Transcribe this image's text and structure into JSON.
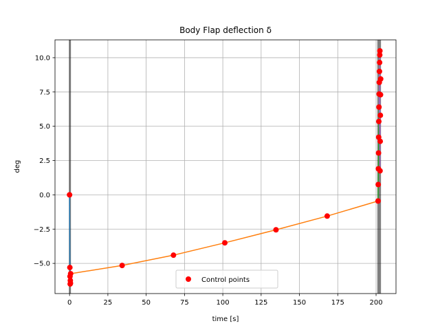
{
  "chart_data": {
    "type": "scatter",
    "title": "Body Flap deflection δ",
    "xlabel": "time [s]",
    "ylabel": "deg",
    "xlim": [
      -9.5,
      213
    ],
    "ylim": [
      -7.2,
      11.3
    ],
    "xticks": [
      0,
      25,
      50,
      75,
      100,
      125,
      150,
      175,
      200
    ],
    "yticks": [
      -5.0,
      -2.5,
      0.0,
      2.5,
      5.0,
      7.5,
      10.0
    ],
    "xtick_labels": [
      "0",
      "25",
      "50",
      "75",
      "100",
      "125",
      "150",
      "175",
      "200"
    ],
    "ytick_labels": [
      "−5.0",
      "−2.5",
      "0.0",
      "2.5",
      "5.0",
      "7.5",
      "10.0"
    ],
    "grid": true,
    "legend": {
      "location": "lower center",
      "entries": [
        "Control points"
      ]
    },
    "phase_bands": [
      {
        "x0": -0.4,
        "x1": 0.9
      },
      {
        "x0": 200.8,
        "x1": 202.0
      },
      {
        "x0": 202.0,
        "x1": 203.2
      }
    ],
    "series": [
      {
        "color": "#1f77b4",
        "mode": "line",
        "x": [
          0.0,
          0.2,
          0.4,
          0.6
        ],
        "y": [
          0.0,
          -5.3,
          -6.0,
          -6.4
        ]
      },
      {
        "color": "#ff7f0e",
        "mode": "line",
        "x": [
          0.7,
          34.3,
          67.8,
          101.3,
          134.7,
          168.1,
          201.3
        ],
        "y": [
          -5.75,
          -5.15,
          -4.4,
          -3.5,
          -2.55,
          -1.55,
          -0.45
        ]
      },
      {
        "color": "#2ca02c",
        "mode": "line",
        "x": [
          201.3,
          201.4,
          201.5,
          201.6,
          201.7,
          201.8,
          201.9
        ],
        "y": [
          -0.45,
          0.75,
          1.9,
          3.05,
          4.2,
          5.35,
          6.4
        ]
      },
      {
        "color": "#9467bd",
        "mode": "line",
        "x": [
          202.0,
          202.6,
          202.2,
          202.7,
          202.3,
          202.6,
          202.4,
          202.6,
          202.4,
          202.5
        ],
        "y": [
          7.35,
          1.75,
          9.0,
          3.9,
          8.2,
          5.8,
          7.35,
          8.45,
          9.4,
          10.5
        ]
      },
      {
        "name": "Control points",
        "color": "#ff0000",
        "mode": "markers",
        "x": [
          0.0,
          0.2,
          0.3,
          0.4,
          0.5,
          0.6,
          0.7,
          34.3,
          67.8,
          101.3,
          134.7,
          168.1,
          201.3,
          201.4,
          201.5,
          201.6,
          201.7,
          201.8,
          201.9,
          202.0,
          202.1,
          202.2,
          202.3,
          202.4,
          202.5,
          202.6,
          202.7,
          202.8,
          202.9,
          203.0
        ],
        "y": [
          0.0,
          -5.3,
          -5.95,
          -6.5,
          -6.25,
          -6.45,
          -5.75,
          -5.15,
          -4.4,
          -3.5,
          -2.55,
          -1.55,
          -0.45,
          0.75,
          1.9,
          3.05,
          4.2,
          5.35,
          6.4,
          7.35,
          8.2,
          9.0,
          9.65,
          10.2,
          10.5,
          1.75,
          3.9,
          5.8,
          7.3,
          8.45
        ]
      }
    ]
  }
}
